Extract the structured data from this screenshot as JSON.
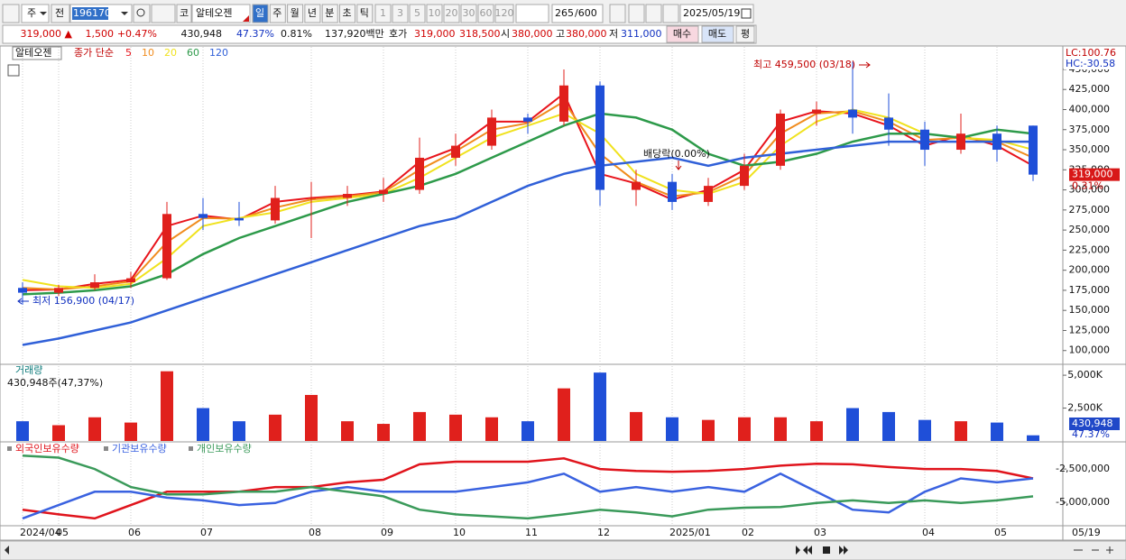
{
  "toolbar": {
    "period_type": "주",
    "prev": "전",
    "code": "196170",
    "market": "코",
    "name": "알테오젠",
    "periods": [
      "일",
      "주",
      "월",
      "년",
      "분",
      "초",
      "틱"
    ],
    "intervals": [
      "1",
      "3",
      "5",
      "10",
      "20",
      "30",
      "60",
      "120"
    ],
    "count": "265",
    "max_count": "/600",
    "date": "2025/05/19"
  },
  "quote_bar": {
    "price": "319,000 ▲",
    "change": "1,500",
    "change_pct": "+0.47%",
    "volume": "430,948",
    "volume_pct": "47.37%",
    "turnover": "0.81%",
    "amount": "137,920백만",
    "bid_label": "호가",
    "ask": "319,000",
    "bid": "318,500",
    "open_label": "시",
    "open": "380,000",
    "high_label": "고",
    "high": "380,000",
    "low_label": "저",
    "low": "311,000",
    "buy": "매수",
    "sell": "매도",
    "avg": "평"
  },
  "chart_data": [
    {
      "type": "candlestick",
      "name": "알테오젠",
      "legend_title": "종가 단순",
      "categories": [
        "2024/04",
        "05",
        null,
        "06",
        null,
        "07",
        null,
        null,
        "08",
        null,
        "09",
        null,
        "10",
        null,
        "11",
        null,
        "12",
        null,
        "2025/01",
        null,
        "02",
        null,
        "03",
        null,
        null,
        "04",
        null,
        "05",
        null
      ],
      "x_end_label": "05/19",
      "open": [
        178000,
        172000,
        178000,
        185000,
        190000,
        270000,
        265000,
        262000,
        290000,
        290000,
        295000,
        300000,
        340000,
        355000,
        390000,
        385000,
        430000,
        300000,
        310000,
        285000,
        305000,
        330000,
        395000,
        400000,
        390000,
        375000,
        350000,
        370000,
        380000
      ],
      "high": [
        185000,
        182000,
        195000,
        198000,
        285000,
        290000,
        285000,
        305000,
        310000,
        305000,
        315000,
        365000,
        370000,
        400000,
        395000,
        450000,
        435000,
        325000,
        320000,
        315000,
        345000,
        400000,
        410000,
        459500,
        420000,
        385000,
        395000,
        380000,
        380000
      ],
      "low": [
        156900,
        168000,
        175000,
        178000,
        188000,
        250000,
        255000,
        258000,
        240000,
        280000,
        285000,
        295000,
        330000,
        350000,
        370000,
        380000,
        280000,
        280000,
        275000,
        280000,
        300000,
        325000,
        380000,
        370000,
        355000,
        330000,
        345000,
        335000,
        311000
      ],
      "close": [
        172000,
        178000,
        185000,
        190000,
        270000,
        265000,
        262000,
        290000,
        290000,
        295000,
        300000,
        340000,
        355000,
        390000,
        385000,
        430000,
        300000,
        310000,
        285000,
        305000,
        330000,
        395000,
        400000,
        390000,
        375000,
        350000,
        370000,
        350000,
        319000
      ],
      "up_color": "#e0201c",
      "down_color": "#1f4fd8",
      "series": [
        {
          "name": "5",
          "color": "#e8141c",
          "values": [
            175000,
            176000,
            183000,
            188000,
            255000,
            268000,
            263000,
            285000,
            290000,
            293000,
            298000,
            335000,
            352000,
            385000,
            385000,
            420000,
            320000,
            308000,
            288000,
            300000,
            325000,
            385000,
            398000,
            395000,
            380000,
            355000,
            368000,
            355000,
            330000
          ]
        },
        {
          "name": "10",
          "color": "#f08c1e",
          "values": [
            178000,
            176000,
            180000,
            186000,
            235000,
            265000,
            264000,
            278000,
            288000,
            292000,
            297000,
            325000,
            348000,
            375000,
            383000,
            410000,
            345000,
            310000,
            292000,
            297000,
            318000,
            370000,
            395000,
            398000,
            385000,
            362000,
            365000,
            360000,
            340000
          ]
        },
        {
          "name": "20",
          "color": "#f0e21e",
          "values": [
            188000,
            180000,
            178000,
            183000,
            215000,
            255000,
            265000,
            272000,
            285000,
            290000,
            295000,
            315000,
            340000,
            365000,
            380000,
            395000,
            370000,
            320000,
            300000,
            295000,
            310000,
            355000,
            385000,
            400000,
            390000,
            370000,
            365000,
            362000,
            350000
          ]
        },
        {
          "name": "60",
          "color": "#2d9a4a",
          "values": [
            170000,
            172000,
            175000,
            180000,
            195000,
            220000,
            240000,
            255000,
            270000,
            285000,
            295000,
            305000,
            320000,
            340000,
            360000,
            380000,
            395000,
            390000,
            375000,
            345000,
            330000,
            335000,
            345000,
            360000,
            370000,
            370000,
            365000,
            375000,
            370000
          ]
        },
        {
          "name": "120",
          "color": "#3060d8",
          "values": [
            107000,
            115000,
            125000,
            135000,
            150000,
            165000,
            180000,
            195000,
            210000,
            225000,
            240000,
            255000,
            265000,
            285000,
            305000,
            320000,
            330000,
            335000,
            340000,
            330000,
            340000,
            345000,
            350000,
            355000,
            360000,
            360000,
            360000,
            360000,
            360000
          ]
        }
      ],
      "ylim": [
        84000,
        478000
      ],
      "yticks": [
        {
          "value": 100000,
          "label": "100,000"
        },
        {
          "value": 125000,
          "label": "125,000"
        },
        {
          "value": 150000,
          "label": "150,000"
        },
        {
          "value": 175000,
          "label": "175,000"
        },
        {
          "value": 200000,
          "label": "200,000"
        },
        {
          "value": 225000,
          "label": "225,000"
        },
        {
          "value": 250000,
          "label": "250,000"
        },
        {
          "value": 275000,
          "label": "275,000"
        },
        {
          "value": 300000,
          "label": "300,000"
        },
        {
          "value": 325000,
          "label": "325,000"
        },
        {
          "value": 350000,
          "label": "350,000"
        },
        {
          "value": 375000,
          "label": "375,000"
        },
        {
          "value": 400000,
          "label": "400,000"
        },
        {
          "value": 425000,
          "label": "425,000"
        },
        {
          "value": 450000,
          "label": "450,000"
        }
      ],
      "annotations": [
        "최고 459,500 (03/18)",
        "최저 156,900 (04/17)",
        "배당락(0.00%)"
      ],
      "last_price_label": "319,000",
      "last_change_label": "0.31%",
      "lc_label": "LC:100.76",
      "hc_label": "HC:-30.58"
    },
    {
      "type": "bar",
      "title": "거래량",
      "subtitle": "430,948주(47,37%)",
      "values": [
        1500000,
        1200000,
        1800000,
        1400000,
        5300000,
        2500000,
        1500000,
        2000000,
        3500000,
        1500000,
        1300000,
        2200000,
        2000000,
        1800000,
        1500000,
        4000000,
        5200000,
        2200000,
        1800000,
        1600000,
        1800000,
        1800000,
        1500000,
        2500000,
        2200000,
        1600000,
        1500000,
        1400000,
        430948
      ],
      "ylim": [
        0,
        5760000
      ],
      "yticks": [
        {
          "value": 2500000,
          "label": "2,500K"
        },
        {
          "value": 5000000,
          "label": "5,000K"
        }
      ],
      "last_value_label": "430,948",
      "last_pct_label": "47.37%"
    },
    {
      "type": "line",
      "series": [
        {
          "name": "외국인보유수량",
          "color": "#e0141c",
          "values": [
            -5550000,
            -5900000,
            -6200000,
            -5200000,
            -4200000,
            -4200000,
            -4200000,
            -3850000,
            -3850000,
            -3500000,
            -3300000,
            -2150000,
            -1950000,
            -1950000,
            -1950000,
            -1700000,
            -2500000,
            -2650000,
            -2700000,
            -2650000,
            -2500000,
            -2250000,
            -2100000,
            -2150000,
            -2350000,
            -2500000,
            -2500000,
            -2650000,
            -3200000
          ]
        },
        {
          "name": "기관보유수량",
          "color": "#3a62e0",
          "values": [
            -6200000,
            -5200000,
            -4200000,
            -4200000,
            -4650000,
            -4850000,
            -5200000,
            -5050000,
            -4200000,
            -3850000,
            -4200000,
            -4200000,
            -4200000,
            -3850000,
            -3500000,
            -2850000,
            -4200000,
            -3850000,
            -4200000,
            -3850000,
            -4200000,
            -2850000,
            -4200000,
            -5550000,
            -5750000,
            -4200000,
            -3200000,
            -3500000,
            -3200000
          ]
        },
        {
          "name": "개인보유수량",
          "color": "#3a9a5a",
          "values": [
            -1500000,
            -1650000,
            -2500000,
            -3850000,
            -4400000,
            -4400000,
            -4200000,
            -4200000,
            -3850000,
            -4200000,
            -4550000,
            -5550000,
            -5900000,
            -6050000,
            -6200000,
            -5900000,
            -5550000,
            -5750000,
            -6050000,
            -5550000,
            -5400000,
            -5350000,
            -5050000,
            -4850000,
            -5050000,
            -4850000,
            -5050000,
            -4850000,
            -4550000
          ]
        }
      ],
      "ylim": [
        -6750000,
        -600000
      ],
      "yticks": [
        {
          "value": -5000000,
          "label": "-5,000,000"
        },
        {
          "value": -2500000,
          "label": "-2,500,000"
        }
      ]
    }
  ]
}
